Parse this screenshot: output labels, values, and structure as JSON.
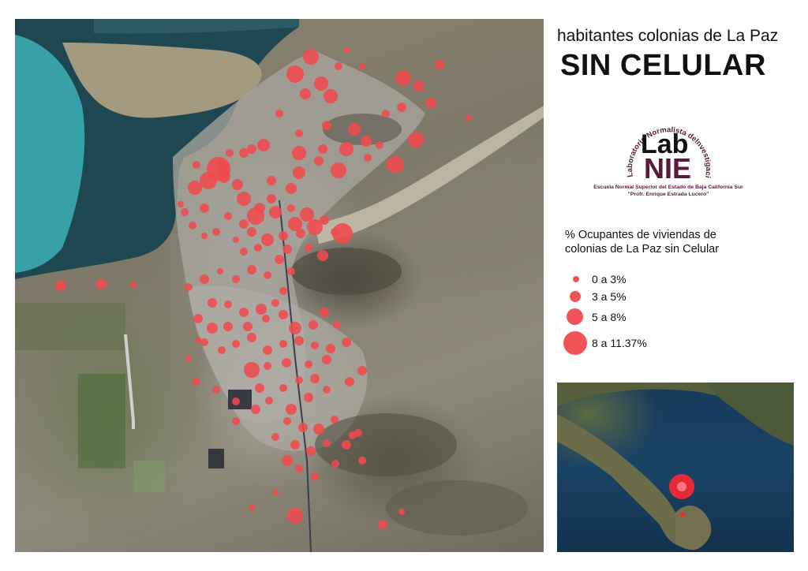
{
  "title": {
    "line1": "habitantes colonias de La Paz",
    "line2": "SIN CELULAR"
  },
  "logo": {
    "wordmark_top": "Lab",
    "wordmark_bottom": "NIE",
    "ring_text": "Laboratorio Normalista deInvestigación Educativa",
    "school": "Escuela Normal Superior del Estado de Baja California Sur",
    "school_sub": "\"Profr. Enrique Estrada Lucero\"",
    "color": "#5b1a3d"
  },
  "legend": {
    "title": "% Ocupantes de viviendas de\ncolonias de  La Paz sin Celular",
    "items": [
      {
        "label": "0 a 3%",
        "class": 1
      },
      {
        "label": "3 a 5%",
        "class": 2
      },
      {
        "label": "5 a 8%",
        "class": 3
      },
      {
        "label": "8 a 11.37%",
        "class": 4
      }
    ],
    "symbol_color": "#f04a4f"
  },
  "map": {
    "symbol": "proportional red circles",
    "water_color": "#3aa5ae",
    "deep_water_color": "#1f4a55",
    "land_color": "#8a8370"
  },
  "inset_map": {
    "highlight_color": "#f02a35"
  }
}
